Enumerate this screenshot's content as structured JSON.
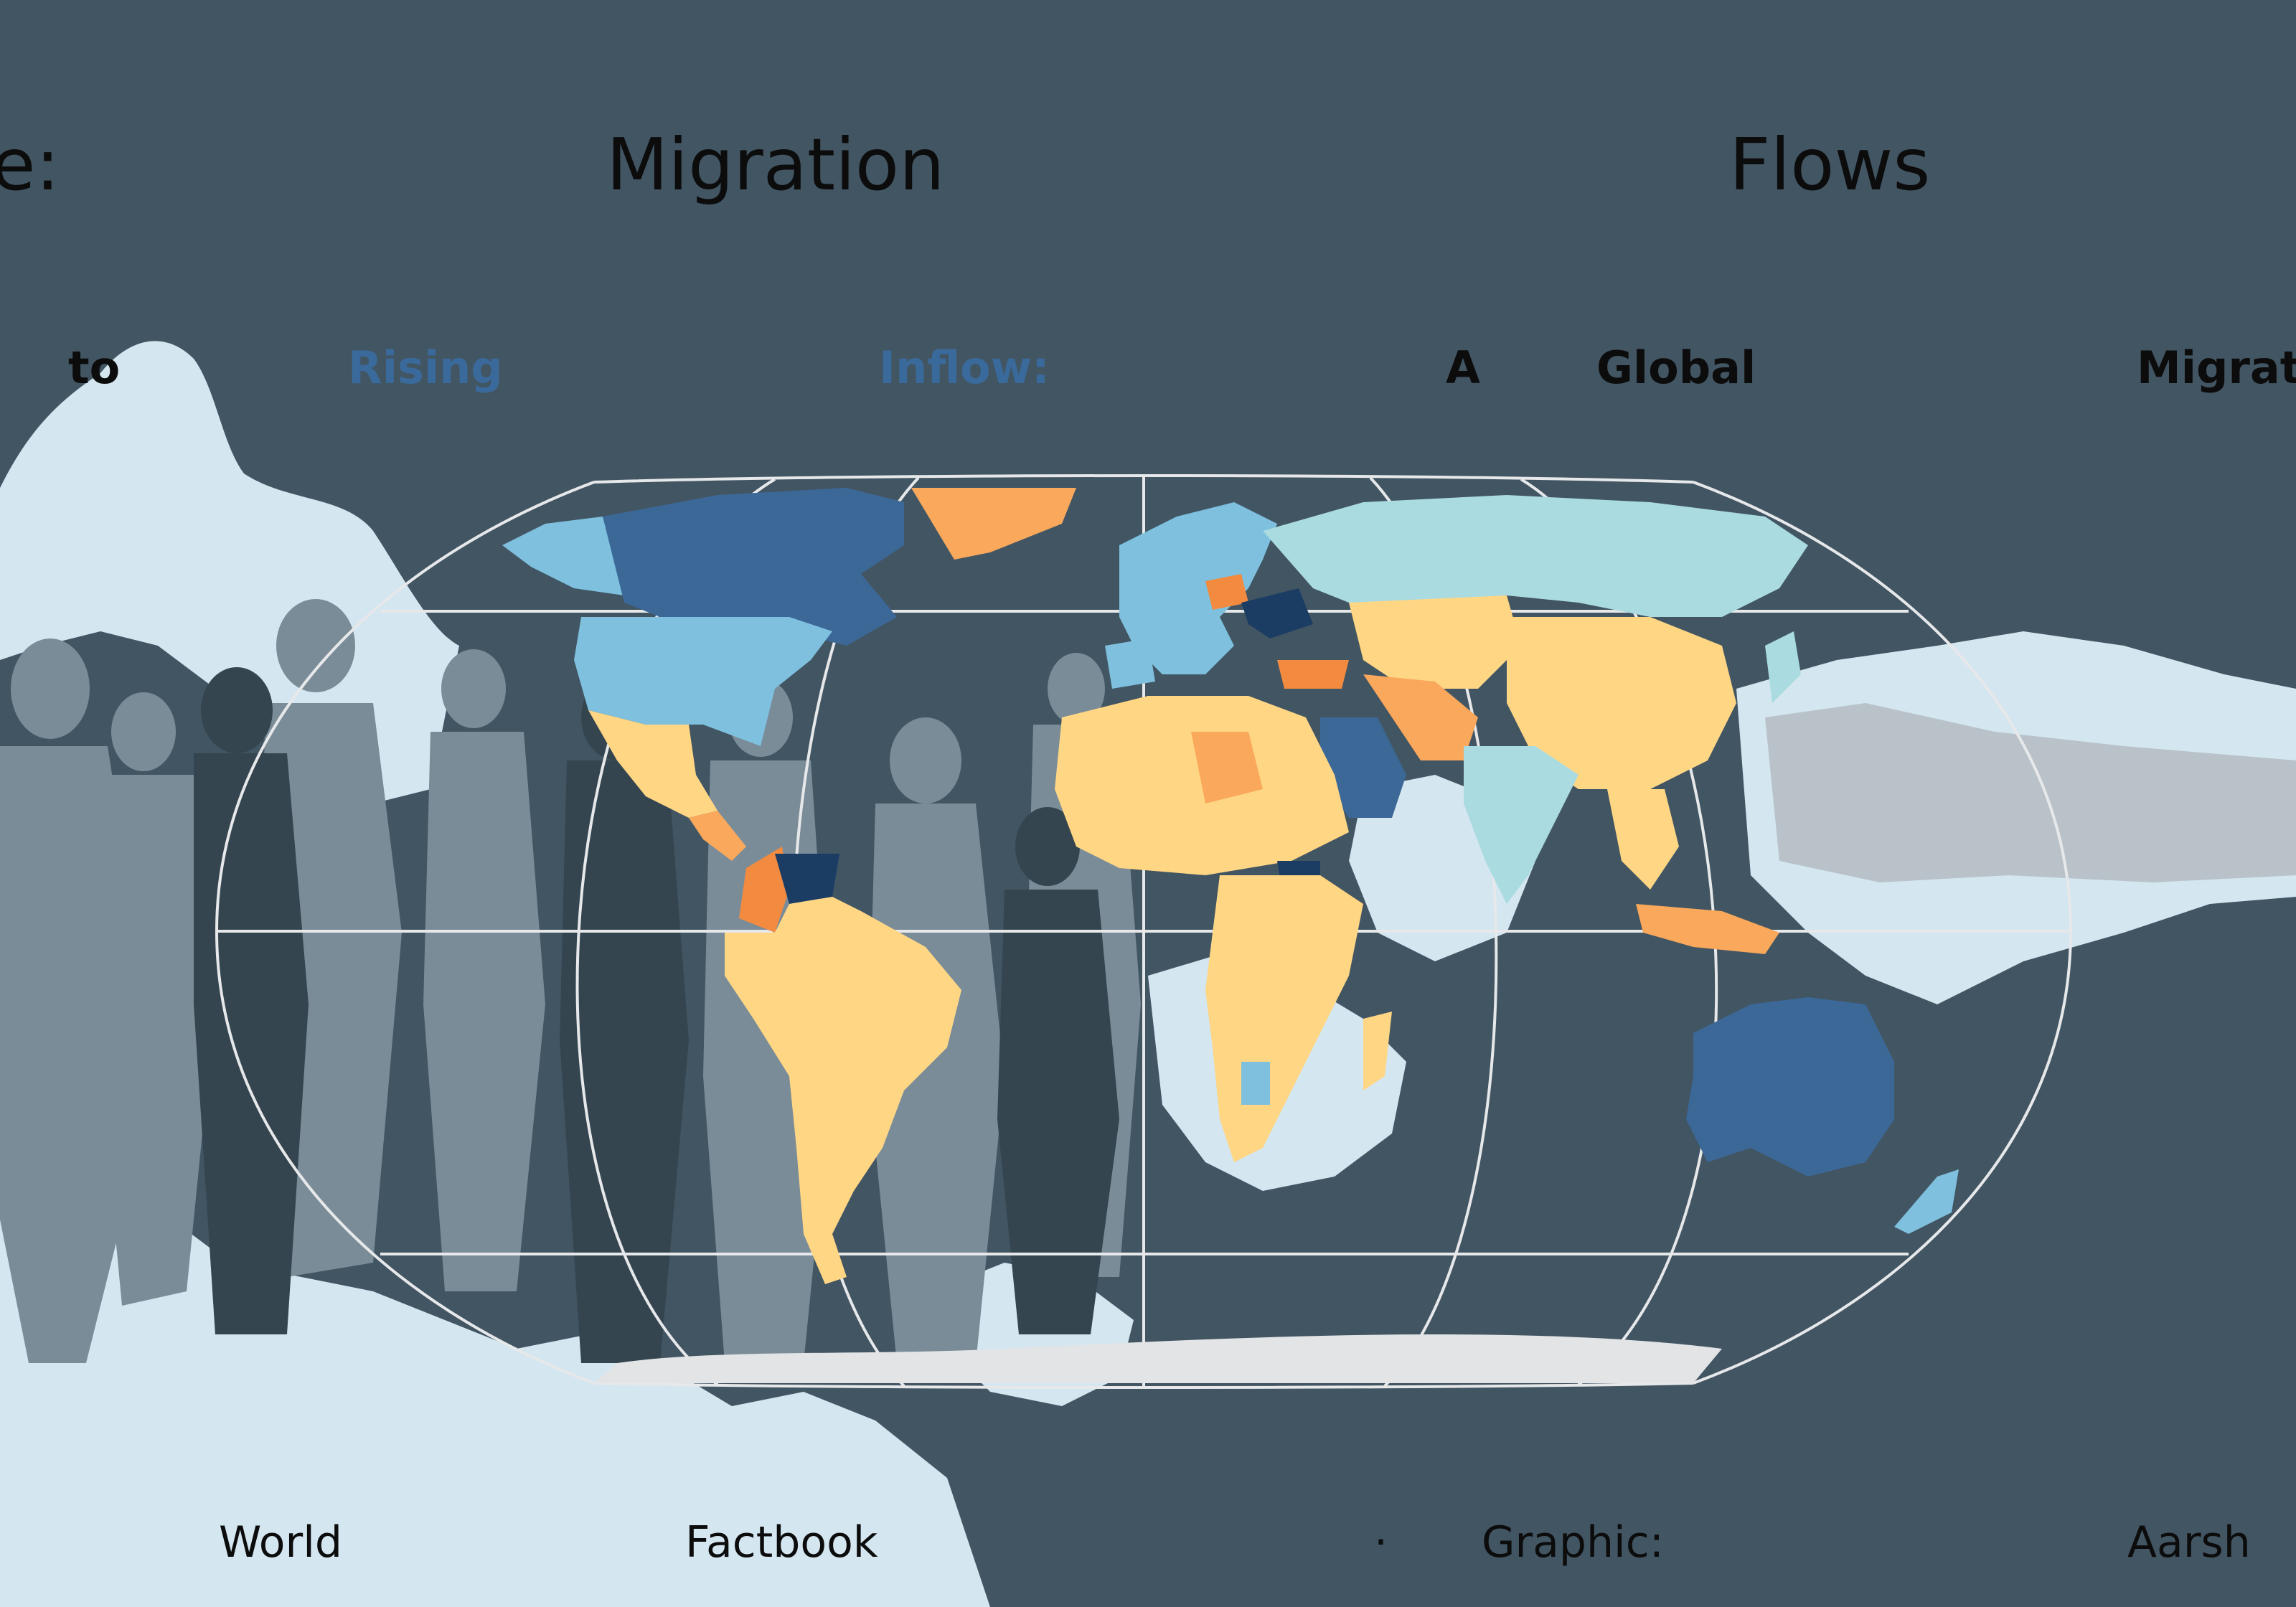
{
  "title": {
    "w1": "e:",
    "w2": "Migration",
    "w3": "Flows"
  },
  "subtitle": {
    "w1": "to",
    "w2": "Rising",
    "w3": "Inflow:",
    "w4": "A",
    "w5": "Global",
    "w6": "Migrati"
  },
  "footer": {
    "w1": "World",
    "w2": "Factbook",
    "sep": "·",
    "w3": "Graphic:",
    "w4": "Aarsh"
  },
  "colors": {
    "background": "#425563",
    "crowd_light": "#d4e6f0",
    "crowd_mid": "#7a8c98",
    "high_inflow_dark": "#1b3d63",
    "high_inflow": "#3c6898",
    "moderate_inflow": "#7ec0de",
    "low_inflow": "#a9dbe0",
    "neutral": "#ffd684",
    "moderate_outflow": "#f9a85c",
    "high_outflow": "#f28b40",
    "antarctica": "#e2e4e6",
    "highlight_blue_text": "#3a6a9b"
  },
  "icons": [
    "map-projection-outline",
    "graticule"
  ]
}
